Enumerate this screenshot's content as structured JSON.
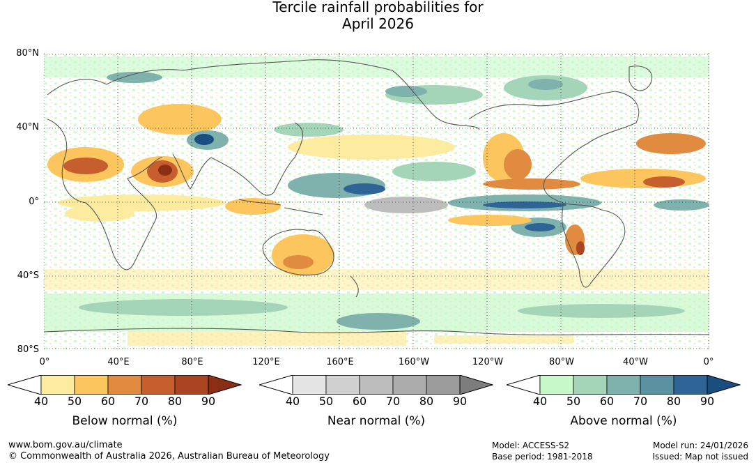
{
  "title": {
    "line1": "Tercile rainfall probabilities for",
    "line2": "April 2026"
  },
  "map": {
    "lat_labels": [
      "80°N",
      "40°N",
      "0°",
      "40°S",
      "80°S"
    ],
    "lon_labels": [
      "0°",
      "40°E",
      "80°E",
      "120°E",
      "160°E",
      "160°W",
      "120°W",
      "80°W",
      "40°W",
      "0°"
    ]
  },
  "colorbars": [
    {
      "title": "Below normal (%)",
      "ticks": [
        "40",
        "50",
        "60",
        "70",
        "80",
        "90"
      ],
      "colors": [
        "#fdeca0",
        "#fdc55d",
        "#e08b3f",
        "#c75e2e",
        "#ab4420",
        "#8b2e14"
      ]
    },
    {
      "title": "Near normal (%)",
      "ticks": [
        "40",
        "50",
        "60",
        "70",
        "80",
        "90"
      ],
      "colors": [
        "#e5e5e5",
        "#d0d0d0",
        "#bdbdbd",
        "#acacac",
        "#9b9b9b",
        "#7d7d7d"
      ]
    },
    {
      "title": "Above normal (%)",
      "ticks": [
        "40",
        "50",
        "60",
        "70",
        "80",
        "90"
      ],
      "colors": [
        "#c7f8c9",
        "#a5d5b8",
        "#7fb2ad",
        "#5b91a0",
        "#2f6497",
        "#1a4d80"
      ]
    }
  ],
  "footer": {
    "url": "www.bom.gov.au/climate",
    "copyright": "© Commonwealth of Australia 2026, Australian Bureau of Meteorology",
    "model": "Model: ACCESS-S2",
    "base_period": "Base period: 1981-2018",
    "model_run": "Model run: 24/01/2026",
    "issued": "Issued: Map not issued"
  }
}
